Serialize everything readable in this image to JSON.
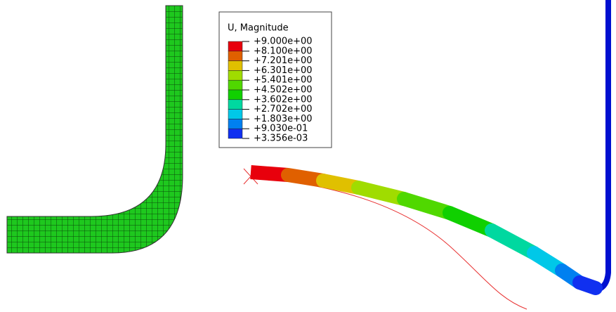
{
  "legend": {
    "title": "U, Magnitude",
    "labels": [
      "+9.000e+00",
      "+8.100e+00",
      "+7.201e+00",
      "+6.301e+00",
      "+5.401e+00",
      "+4.502e+00",
      "+3.602e+00",
      "+2.702e+00",
      "+1.803e+00",
      "+9.030e-01",
      "+3.356e-03"
    ],
    "colors": [
      "#e8000c",
      "#e06000",
      "#e0c000",
      "#a0dc00",
      "#50d800",
      "#10d000",
      "#00d8a0",
      "#00c8e8",
      "#0080f0",
      "#1030f0",
      "#0000d8"
    ]
  }
}
